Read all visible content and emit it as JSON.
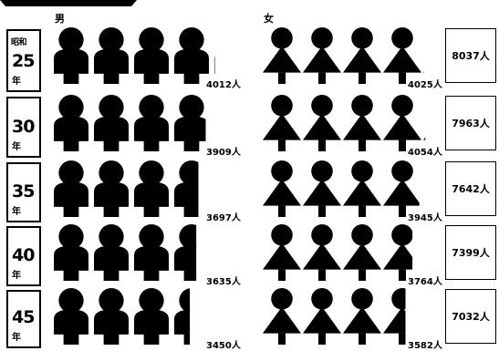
{
  "chart_data": {
    "type": "pictograph",
    "unit_people_per_icon": 1000,
    "male_label": "男",
    "female_label": "女",
    "era_label": "昭和",
    "year_suffix": "年",
    "count_suffix": "人",
    "rows": [
      {
        "year": "25",
        "male": 4012,
        "female": 4025,
        "total": 8037
      },
      {
        "year": "30",
        "male": 3909,
        "female": 4054,
        "total": 7963
      },
      {
        "year": "35",
        "male": 3697,
        "female": 3945,
        "total": 7642
      },
      {
        "year": "40",
        "male": 3635,
        "female": 3764,
        "total": 7399
      },
      {
        "year": "45",
        "male": 3450,
        "female": 3582,
        "total": 7032
      }
    ],
    "icon_color": "#000000",
    "male_icon": "male-silhouette-icon",
    "female_icon": "female-silhouette-icon"
  }
}
